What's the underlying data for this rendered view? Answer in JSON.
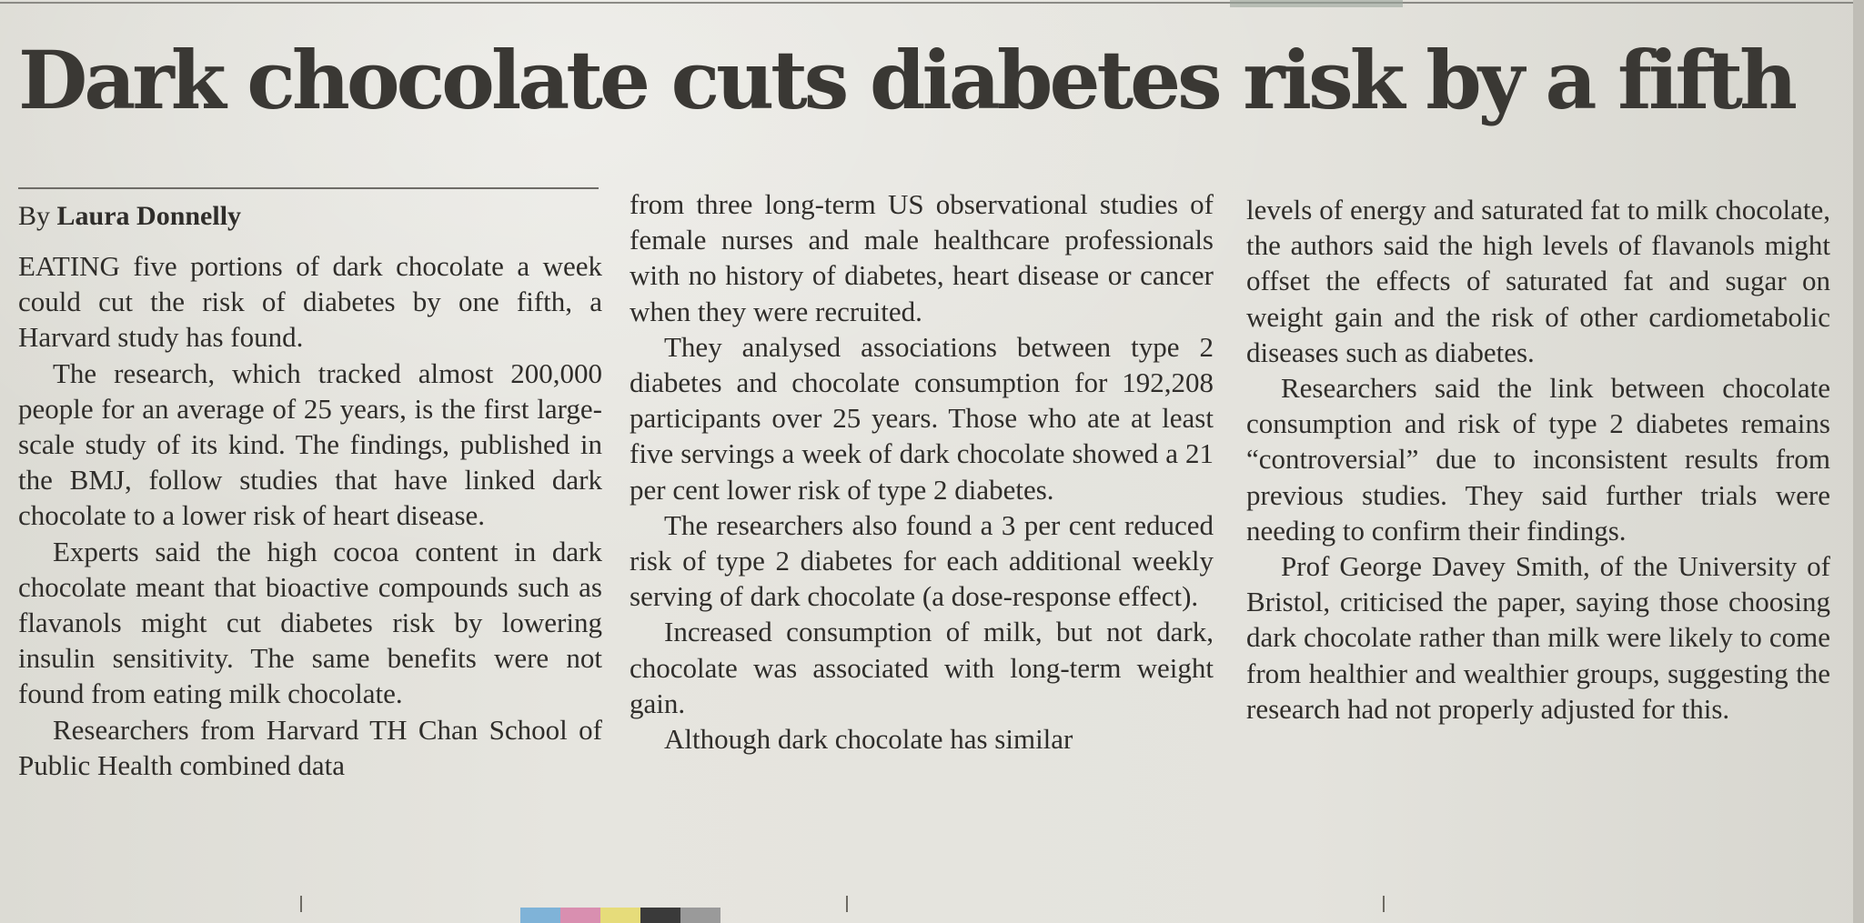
{
  "headline": "Dark chocolate cuts diabetes risk by a fifth",
  "byline": {
    "prefix": "By ",
    "author": "Laura Donnelly"
  },
  "article": {
    "column_1": [
      "EATING five portions of dark chocolate a week could cut the risk of diabetes by one fifth, a Harvard study has found.",
      "The research, which tracked almost 200,000 people for an average of 25 years, is the first large-scale study of its kind. The findings, published in the BMJ, follow studies that have linked dark chocolate to a lower risk of heart disease.",
      "Experts said the high cocoa content in dark chocolate meant that bioactive compounds such as flavanols might cut diabetes risk by lowering insulin sensitivity. The same benefits were not found from eating milk chocolate.",
      "Researchers from Harvard TH Chan School of Public Health combined data"
    ],
    "column_2": [
      "from three long-term US observational studies of female nurses and male healthcare professionals with no history of diabetes, heart disease or cancer when they were recruited.",
      "They analysed associations between type 2 diabetes and chocolate consumption for 192,208 participants over 25 years. Those who ate at least five servings a week of dark chocolate showed a 21 per cent lower risk of type 2 diabetes.",
      "The researchers also found a 3 per cent reduced risk of type 2 diabetes for each additional weekly serving of dark chocolate (a dose-response effect).",
      "Increased consumption of milk, but not dark, chocolate was associated with long-term weight gain.",
      "Although dark chocolate has similar"
    ],
    "column_3": [
      "levels of energy and saturated fat to milk chocolate, the authors said the high levels of flavanols might offset the effects of saturated fat and sugar on weight gain and the risk of other cardiometabolic diseases such as diabetes.",
      "Researchers said the link between chocolate consumption and risk of type 2 diabetes remains “controversial” due to inconsistent results from previous studies. They said further trials were needing to confirm their findings.",
      "Prof George Davey Smith, of the University of Bristol, criticised the paper, saying those choosing dark chocolate rather than milk were likely to come from healthier and wealthier groups, suggesting the research had not properly adjusted for this."
    ]
  },
  "colors": {
    "ink": "#2f2d2a",
    "headline_ink": "#3a3834",
    "paper": "#e3e2dc",
    "print_bar": [
      "#7fb3d8",
      "#d98fb0",
      "#e6dc7a",
      "#3a3a3a",
      "#9a9a9a"
    ]
  }
}
